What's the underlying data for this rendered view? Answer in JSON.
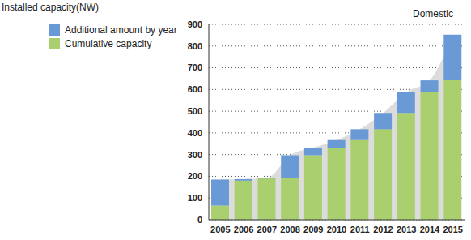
{
  "chart_data": {
    "type": "bar",
    "y_label": "Installed capacity(NW)",
    "annotation": "Domestic",
    "categories": [
      "2005",
      "2006",
      "2007",
      "2008",
      "2009",
      "2010",
      "2011",
      "2012",
      "2013",
      "2014",
      "2015"
    ],
    "series": [
      {
        "name": "Additional amount by year",
        "color": "#6a9ad6",
        "values": [
          120,
          7,
          2,
          105,
          35,
          35,
          50,
          75,
          95,
          55,
          210
        ]
      },
      {
        "name": "Cumulative capacity",
        "color": "#a9cf6f",
        "values": [
          65,
          180,
          190,
          192,
          297,
          332,
          367,
          417,
          492,
          587,
          642
        ]
      }
    ],
    "stacked": true,
    "ylim": [
      0,
      900
    ],
    "yticks": [
      0,
      100,
      200,
      300,
      400,
      500,
      600,
      700,
      800,
      900
    ],
    "grid": true,
    "legend": "top-left"
  }
}
